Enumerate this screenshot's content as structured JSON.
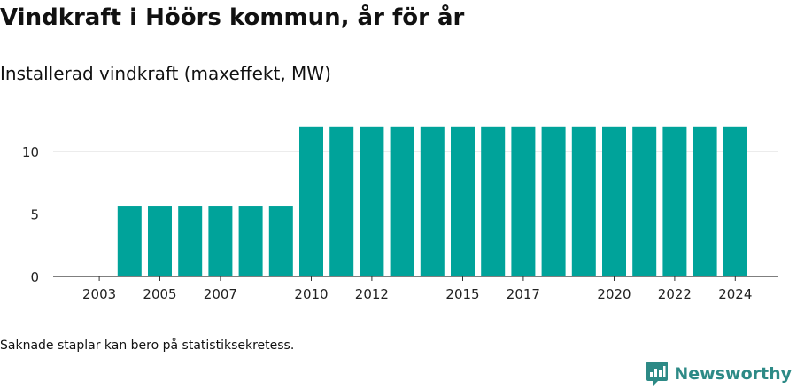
{
  "header": {
    "title": "Vindkraft i Höörs kommun, år för år",
    "subtitle": "Installerad vindkraft (maxeffekt, MW)"
  },
  "footer": {
    "note": "Saknade staplar kan bero på statistiksekretess.",
    "brand_name": "Newsworthy"
  },
  "colors": {
    "bar": "#00a39a",
    "grid": "#d9d9d9",
    "axis": "#333333",
    "brand": "#2d8a86"
  },
  "icons": {
    "brand_logo": "newsworthy-logo-icon"
  },
  "chart_data": {
    "type": "bar",
    "title": "Vindkraft i Höörs kommun, år för år",
    "subtitle": "Installerad vindkraft (maxeffekt, MW)",
    "xlabel": "",
    "ylabel": "",
    "categories": [
      "2003",
      "2004",
      "2005",
      "2006",
      "2007",
      "2008",
      "2009",
      "2010",
      "2011",
      "2012",
      "2013",
      "2014",
      "2015",
      "2016",
      "2017",
      "2018",
      "2019",
      "2020",
      "2021",
      "2022",
      "2023",
      "2024"
    ],
    "values": [
      0,
      5.6,
      5.6,
      5.6,
      5.6,
      5.6,
      5.6,
      12,
      12,
      12,
      12,
      12,
      12,
      12,
      12,
      12,
      12,
      12,
      12,
      12,
      12,
      12
    ],
    "x_tick_labels": [
      "2003",
      "2005",
      "2007",
      "2010",
      "2012",
      "2015",
      "2017",
      "2020",
      "2022",
      "2024"
    ],
    "y_ticks": [
      0,
      5,
      10
    ],
    "ylim": [
      0,
      12.3
    ],
    "grid": true,
    "legend": "none"
  }
}
